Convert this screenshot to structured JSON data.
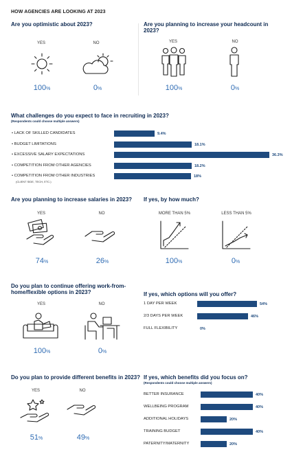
{
  "title": "HOW AGENCIES ARE LOOKING AT 2023",
  "optimistic": {
    "q": "Are you optimistic about 2023?",
    "yes": "YES",
    "no": "NO",
    "yes_pct": "100",
    "no_pct": "0",
    "unit": "%"
  },
  "headcount": {
    "q": "Are you planning to increase your headcount in 2023?",
    "yes": "YES",
    "no": "NO",
    "yes_pct": "100",
    "no_pct": "0",
    "unit": "%"
  },
  "challenges": {
    "q": "What challenges do you expect to face in recruiting in 2023?",
    "note": "(Respondents could choose multiple answers)",
    "sub_note": "(CLIENT SIDE, TECH, ETC.)"
  },
  "salaries": {
    "q": "Are you planning to increase salaries in 2023?",
    "yes": "YES",
    "no": "NO",
    "yes_pct": "74",
    "no_pct": "26",
    "unit": "%"
  },
  "howmuch": {
    "q": "If yes, by how much?",
    "a": "MORE THAN 5%",
    "b": "LESS THAN 5%",
    "a_pct": "100",
    "b_pct": "0",
    "unit": "%"
  },
  "wfh": {
    "q": "Do you plan to continue offering work-from-home/flexible options in 2023?",
    "yes": "YES",
    "no": "NO",
    "yes_pct": "100",
    "no_pct": "0",
    "unit": "%"
  },
  "wfh_options": {
    "q": "If yes, which options will you offer?"
  },
  "benefits": {
    "q": "Do you plan to provide different benefits in 2023?",
    "yes": "YES",
    "no": "NO",
    "yes_pct": "51",
    "no_pct": "49",
    "unit": "%"
  },
  "benefit_focus": {
    "q": "If yes, which benefits did you focus on?",
    "note": "(Respondents could choose multiple answers)"
  },
  "colors": {
    "accent": "#2e6bb3",
    "bar": "#1e4a7e",
    "heading": "#0e2a52"
  },
  "chart_data": [
    {
      "type": "bar",
      "title": "What challenges do you expect to face in recruiting in 2023?",
      "categories": [
        "LACK OF SKILLED CANDIDATES",
        "BUDGET LIMITATIONS",
        "EXCESSIVE SALARY EXPECTATIONS",
        "COMPETITION FROM OTHER AGENCIES",
        "COMPETITION FROM OTHER INDUSTRIES"
      ],
      "values": [
        9.4,
        18.1,
        36.3,
        18.2,
        18
      ],
      "labels": [
        "9.4%",
        "18.1%",
        "36.3%",
        "18.2%",
        "18%"
      ],
      "xlim": [
        0,
        36.3
      ]
    },
    {
      "type": "bar",
      "title": "If yes, which options will you offer?",
      "categories": [
        "1 DAY PER WEEK",
        "2/3 DAYS PER WEEK",
        "FULL FLEXIBILITY"
      ],
      "values": [
        54,
        46,
        0
      ],
      "labels": [
        "54%",
        "46%",
        "0%"
      ],
      "xlim": [
        0,
        54
      ]
    },
    {
      "type": "bar",
      "title": "If yes, which benefits did you focus on?",
      "categories": [
        "BETTER INSURANCE",
        "WELLBEING PROGRAM",
        "ADDITIONAL HOLIDAYS",
        "TRAINING BUDGET",
        "PATERNITY/MATERNITY"
      ],
      "values": [
        40,
        40,
        20,
        40,
        20
      ],
      "labels": [
        "40%",
        "40%",
        "20%",
        "40%",
        "20%"
      ],
      "xlim": [
        0,
        40
      ]
    }
  ]
}
